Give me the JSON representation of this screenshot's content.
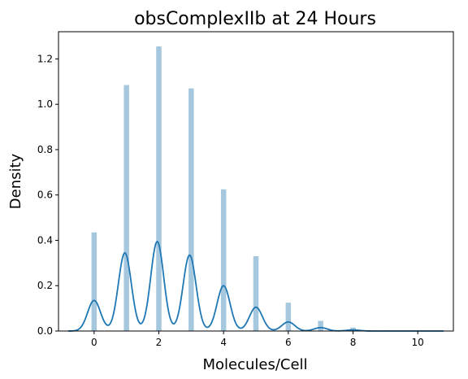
{
  "chart_data": {
    "type": "bar",
    "title": "obsComplexIIb at 24 Hours",
    "xlabel": "Molecules/Cell",
    "ylabel": "Density",
    "xlim": [
      -1.1,
      11.1
    ],
    "ylim": [
      0,
      1.32
    ],
    "xticks": [
      "0",
      "2",
      "4",
      "6",
      "8",
      "10"
    ],
    "yticks": [
      "0.0",
      "0.2",
      "0.4",
      "0.6",
      "0.8",
      "1.0",
      "1.2"
    ],
    "grid": false,
    "bar_color": "#a6c8de",
    "line_color": "#1f77b4",
    "series": [
      {
        "kind": "histogram",
        "x": [
          0,
          1,
          2,
          3,
          4,
          5,
          6,
          7,
          8,
          9,
          10
        ],
        "values": [
          0.435,
          1.085,
          1.255,
          1.07,
          0.625,
          0.33,
          0.125,
          0.045,
          0.015,
          0.003,
          0.002
        ]
      },
      {
        "kind": "kde",
        "peaks": [
          {
            "x": 0.0,
            "y": 0.135
          },
          {
            "x": 0.95,
            "y": 0.345
          },
          {
            "x": 1.95,
            "y": 0.395
          },
          {
            "x": 2.95,
            "y": 0.335
          },
          {
            "x": 4.0,
            "y": 0.2
          },
          {
            "x": 5.0,
            "y": 0.105
          },
          {
            "x": 6.0,
            "y": 0.04
          },
          {
            "x": 7.0,
            "y": 0.015
          },
          {
            "x": 8.0,
            "y": 0.005
          }
        ],
        "x_range": [
          -0.8,
          10.8
        ]
      }
    ]
  }
}
